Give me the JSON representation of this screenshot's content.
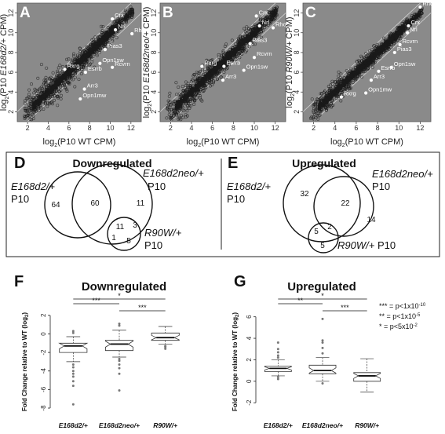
{
  "scatter_panels": [
    {
      "letter": "A",
      "ylabel_pre": "log",
      "ylabel_sub": "2",
      "ylabel_main": "(P10 ",
      "ylabel_ital": "E168d2/+",
      "ylabel_post": " CPM)",
      "xlabel_pre": "log",
      "xlabel_sub": "2",
      "xlabel_main": "(P10 WT CPM)",
      "genes": [
        {
          "name": "Crx",
          "x": 10.2,
          "y": 11.4
        },
        {
          "name": "Nrl",
          "x": 10.5,
          "y": 10.3
        },
        {
          "name": "Rho",
          "x": 12.1,
          "y": 9.9
        },
        {
          "name": "Pias3",
          "x": 9.5,
          "y": 8.3
        },
        {
          "name": "Rxrg",
          "x": 5.6,
          "y": 6.3
        },
        {
          "name": "Opn1sw",
          "x": 9.0,
          "y": 6.9
        },
        {
          "name": "Esrrb",
          "x": 7.6,
          "y": 6.0
        },
        {
          "name": "Rcvrn",
          "x": 10.2,
          "y": 6.5
        },
        {
          "name": "Arr3",
          "x": 7.5,
          "y": 4.3
        },
        {
          "name": "Opn1mw",
          "x": 7.1,
          "y": 3.3
        }
      ]
    },
    {
      "letter": "B",
      "ylabel_pre": "log",
      "ylabel_sub": "2",
      "ylabel_main": "(P10 ",
      "ylabel_ital": "E168d2neo/+",
      "ylabel_post": " CPM)",
      "xlabel_pre": "log",
      "xlabel_sub": "2",
      "xlabel_main": "(P10 WT CPM)",
      "genes": [
        {
          "name": "Crx",
          "x": 10.2,
          "y": 11.7
        },
        {
          "name": "Nrl",
          "x": 10.5,
          "y": 10.7
        },
        {
          "name": "Rho",
          "x": 11.8,
          "y": 10.5
        },
        {
          "name": "Pias3",
          "x": 9.6,
          "y": 8.9
        },
        {
          "name": "Rcvrn",
          "x": 10.0,
          "y": 7.5
        },
        {
          "name": "Rxrg",
          "x": 5.0,
          "y": 6.6
        },
        {
          "name": "Esrrb",
          "x": 7.1,
          "y": 6.6
        },
        {
          "name": "Opn1sw",
          "x": 9.0,
          "y": 6.2
        },
        {
          "name": "Arr3",
          "x": 7.0,
          "y": 5.2
        }
      ]
    },
    {
      "letter": "C",
      "ylabel_pre": "log",
      "ylabel_sub": "2",
      "ylabel_main": "(P10 ",
      "ylabel_ital": "R90W/+",
      "ylabel_post": " CPM)",
      "xlabel_pre": "log",
      "xlabel_sub": "2",
      "xlabel_main": "(P10 WT CPM)",
      "genes": [
        {
          "name": "Rho",
          "x": 12.0,
          "y": 12.6
        },
        {
          "name": "Crx",
          "x": 10.9,
          "y": 10.7
        },
        {
          "name": "Nrl",
          "x": 10.8,
          "y": 10.0
        },
        {
          "name": "Rcvrn",
          "x": 10.1,
          "y": 8.8
        },
        {
          "name": "Pias3",
          "x": 9.6,
          "y": 8.0
        },
        {
          "name": "Opn1sw",
          "x": 9.3,
          "y": 6.5
        },
        {
          "name": "Esrrb",
          "x": 8.1,
          "y": 6.1
        },
        {
          "name": "Arr3",
          "x": 7.4,
          "y": 5.2
        },
        {
          "name": "Opn1mw",
          "x": 6.9,
          "y": 3.9
        },
        {
          "name": "Rxrg",
          "x": 4.6,
          "y": 3.5
        }
      ]
    }
  ],
  "scatter_ticks": {
    "x": [
      "2",
      "4",
      "6",
      "8",
      "10",
      "12"
    ],
    "y": [
      "2",
      "4",
      "6",
      "8",
      "10",
      "12"
    ]
  },
  "venn_D": {
    "letter": "D",
    "title": "Downregulated",
    "set1_ital": "E168d2/+",
    "set1_line2": "P10",
    "set2_ital": "E168d2neo/+",
    "set2_line2": "P10",
    "set3_ital": "R90W/+",
    "set3_line2": "P10",
    "n_only1": "64",
    "n_12": "60",
    "n_only2": "11",
    "n_123": "11",
    "n_23": "3",
    "n_13": "1",
    "n_only3": "5"
  },
  "venn_E": {
    "letter": "E",
    "title": "Upregulated",
    "set1_ital": "E168d2/+",
    "set1_line2": "P10",
    "set2_ital": "E168d2neo/+",
    "set2_line2": "P10",
    "set3_ital": "R90W/+",
    "set3_post": " P10",
    "n_only1": "32",
    "n_12": "22",
    "n_only2": "14",
    "n_13": "5",
    "n_123": "2",
    "n_only3": "5"
  },
  "chart_data": [
    {
      "type": "box",
      "panel": "F",
      "title": "Downregulated",
      "ylabel": "Fold Change relative to WT (log",
      "ylabel_sub": "2",
      "ylabel_post": ")",
      "categories": [
        "E168d2/+",
        "E168d2neo/+",
        "R90W/+"
      ],
      "ylim": [
        -8,
        3
      ],
      "yticks": [
        "2",
        "0",
        "-2",
        "-4",
        "-6",
        "-8"
      ],
      "boxes": [
        {
          "q1": -2.0,
          "median": -1.3,
          "q3": -1.0,
          "whisk_lo": -3.0,
          "whisk_hi": -0.3,
          "outliers": [
            -7.6,
            -5.6,
            -5.1,
            -4.6,
            -4.3,
            -4.0,
            -3.6,
            -3.3,
            0.1,
            0.3
          ]
        },
        {
          "q1": -1.8,
          "median": -1.1,
          "q3": -0.7,
          "whisk_lo": -2.5,
          "whisk_hi": 0.4,
          "outliers": [
            -6.1,
            -4.3,
            -3.7,
            -3.3,
            -2.9,
            -2.7,
            0.9,
            1.1
          ]
        },
        {
          "q1": -0.7,
          "median": -0.4,
          "q3": 0.1,
          "whisk_lo": -1.1,
          "whisk_hi": 0.8,
          "outliers": [
            -1.6,
            -1.4,
            -1.3
          ]
        }
      ],
      "sig": [
        {
          "from": 0,
          "to": 2,
          "label": "*"
        },
        {
          "from": 0,
          "to": 1,
          "label": "***"
        },
        {
          "from": 1,
          "to": 2,
          "label": "***"
        }
      ]
    },
    {
      "type": "box",
      "panel": "G",
      "title": "Upregulated",
      "ylabel": "Fold Change relative to WT (log",
      "ylabel_sub": "2",
      "ylabel_post": ")",
      "categories": [
        "E168d2/+",
        "E168d2neo/+",
        "R90W/+"
      ],
      "ylim": [
        -2.5,
        7
      ],
      "yticks": [
        "6",
        "4",
        "2",
        "0",
        "-2"
      ],
      "boxes": [
        {
          "q1": 0.9,
          "median": 1.2,
          "q3": 1.4,
          "whisk_lo": 0.5,
          "whisk_hi": 2.0,
          "outliers": [
            3.6,
            3.0,
            2.7,
            2.4,
            2.2,
            0.2,
            0.4
          ]
        },
        {
          "q1": 0.7,
          "median": 1.0,
          "q3": 1.5,
          "whisk_lo": 0.0,
          "whisk_hi": 2.2,
          "outliers": [
            5.8,
            3.8,
            3.6,
            3.1,
            2.6,
            -0.2
          ]
        },
        {
          "q1": 0.0,
          "median": 0.5,
          "q3": 0.8,
          "whisk_lo": -1.0,
          "whisk_hi": 2.1,
          "outliers": []
        }
      ],
      "sig": [
        {
          "from": 0,
          "to": 2,
          "label": "*"
        },
        {
          "from": 0,
          "to": 1,
          "label": "**"
        },
        {
          "from": 1,
          "to": 2,
          "label": "***"
        }
      ]
    }
  ],
  "legend": [
    {
      "stars": "***",
      "text": "= p<1x10",
      "sup": "-10"
    },
    {
      "stars": "**",
      "text": "= p<1x10",
      "sup": "-5"
    },
    {
      "stars": "*",
      "text": "= p<5x10",
      "sup": "-2"
    }
  ],
  "colors": {
    "scatter_bg": "#8a8a8a",
    "scatter_pts": "#1a1a1a",
    "highlight": "#ffffff"
  }
}
